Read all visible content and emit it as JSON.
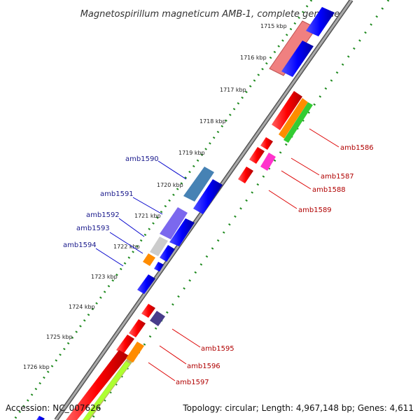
{
  "title": "Magnetospirillum magneticum AMB-1, complete genome",
  "footer": {
    "accession": "Accession: NC_007626",
    "topology": "Topology: circular; Length: 4,967,148 bp; Genes: 4,611"
  },
  "ticks": [
    "1715 kbp",
    "1716 kbp",
    "1717 kbp",
    "1718 kbp",
    "1719 kbp",
    "1720 kbp",
    "1721 kbp",
    "1722 kbp",
    "1723 kbp",
    "1724 kbp",
    "1725 kbp",
    "1726 kbp"
  ],
  "labels_left": [
    "amb1590",
    "amb1591",
    "amb1592",
    "amb1593",
    "amb1594"
  ],
  "labels_right": [
    "amb1586",
    "amb1587",
    "amb1588",
    "amb1589",
    "amb1595",
    "amb1596",
    "amb1597"
  ],
  "colors": {
    "backbone": "#8a8a8a",
    "tick_dots": "#1f8a1f",
    "red": "#ff0000",
    "blue": "#0000ff",
    "orange": "#ff8c00",
    "green": "#33cc33",
    "magenta": "#ff33cc",
    "steel_blue": "#4682b4",
    "slate": "#7b68ee",
    "navy": "#483d8b",
    "light_grey": "#cccccc",
    "pink": "#f08080",
    "khaki": "#b8b860",
    "lime": "#adff2f",
    "label_left": "#1a1a8c",
    "label_right": "#b00000"
  }
}
